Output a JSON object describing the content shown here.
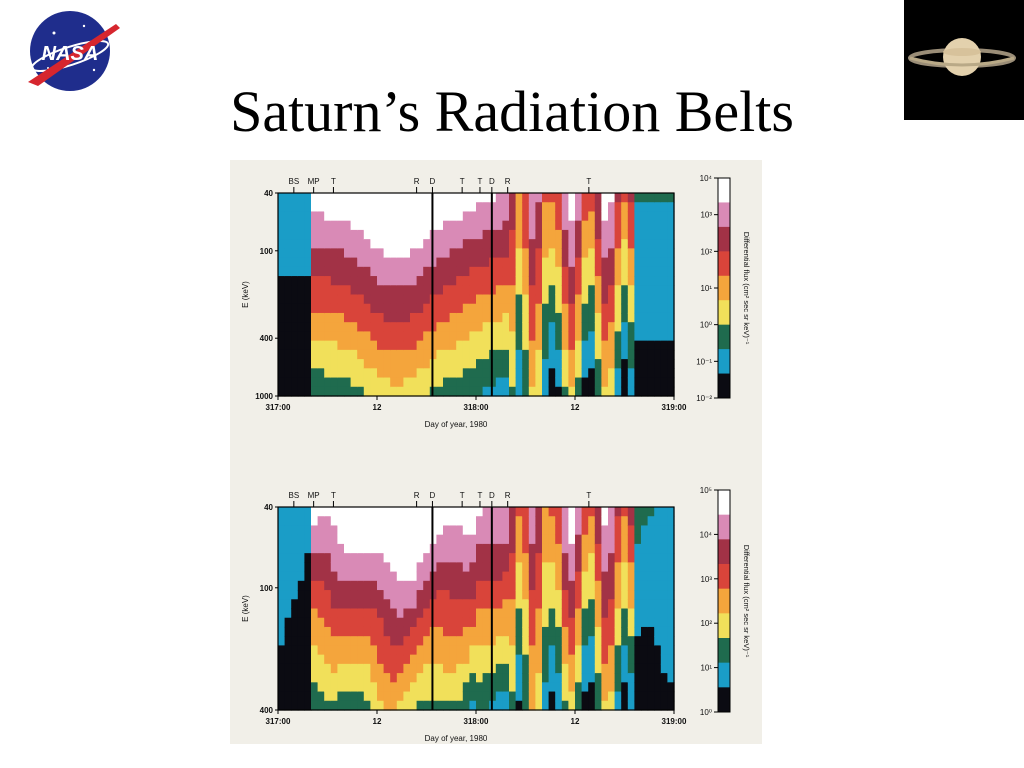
{
  "slide": {
    "title": "Saturn’s Radiation Belts",
    "logo_text": "NASA"
  },
  "colors": {
    "scale": [
      "#0b0b12",
      "#1a9dc7",
      "#1f6b4e",
      "#f1e05a",
      "#f4a53c",
      "#d9443a",
      "#a23246",
      "#d98ab6",
      "#ffffff"
    ]
  },
  "chart_data": [
    {
      "type": "heatmap",
      "xlabel": "Day of year, 1980",
      "ylabel": "E (keV)",
      "x_ticks": [
        "317:00",
        "12",
        "318:00",
        "12",
        "319:00"
      ],
      "y_ticks": [
        "40",
        "100",
        "400",
        "1000"
      ],
      "ylim": [
        40,
        1000
      ],
      "y_scale": "log",
      "events": [
        {
          "label": "BS",
          "day": 317.08
        },
        {
          "label": "MP",
          "day": 317.18
        },
        {
          "label": "T",
          "day": 317.28
        },
        {
          "label": "R",
          "day": 317.7
        },
        {
          "label": "D",
          "day": 317.78
        },
        {
          "label": "T",
          "day": 317.93
        },
        {
          "label": "T",
          "day": 318.02
        },
        {
          "label": "D",
          "day": 318.08
        },
        {
          "label": "R",
          "day": 318.16
        },
        {
          "label": "T",
          "day": 318.57
        }
      ],
      "colorbar": {
        "label": "Differential flux (cm² sec sr keV)⁻¹",
        "ticks": [
          "10⁴",
          "10³",
          "10²",
          "10¹",
          "10⁰",
          "10⁻¹",
          "10⁻²"
        ],
        "range_log10": [
          -2,
          4
        ]
      }
    },
    {
      "type": "heatmap",
      "xlabel": "Day of year, 1980",
      "ylabel": "E (keV)",
      "x_ticks": [
        "317:00",
        "12",
        "318:00",
        "12",
        "319:00"
      ],
      "y_ticks": [
        "40",
        "100",
        "400"
      ],
      "ylim": [
        40,
        400
      ],
      "y_scale": "log",
      "events": [
        {
          "label": "BS",
          "day": 317.08
        },
        {
          "label": "MP",
          "day": 317.18
        },
        {
          "label": "T",
          "day": 317.28
        },
        {
          "label": "R",
          "day": 317.7
        },
        {
          "label": "D",
          "day": 317.78
        },
        {
          "label": "T",
          "day": 317.93
        },
        {
          "label": "T",
          "day": 318.02
        },
        {
          "label": "D",
          "day": 318.08
        },
        {
          "label": "R",
          "day": 318.16
        },
        {
          "label": "T",
          "day": 318.57
        }
      ],
      "colorbar": {
        "label": "Differential flux (cm² sec sr keV)⁻¹",
        "ticks": [
          "10⁵",
          "10⁴",
          "10³",
          "10²",
          "10¹",
          "10⁰"
        ],
        "range_log10": [
          0,
          5
        ]
      }
    }
  ]
}
